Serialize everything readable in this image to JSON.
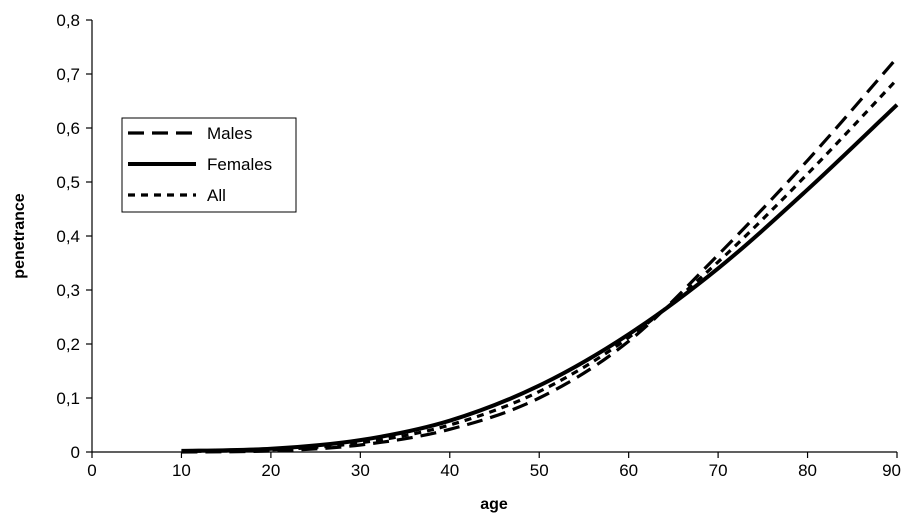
{
  "chart_data": {
    "type": "line",
    "title": "",
    "xlabel": "age",
    "ylabel": "penetrance",
    "xlim": [
      0,
      90
    ],
    "ylim": [
      0,
      0.8
    ],
    "x_ticks": [
      0,
      10,
      20,
      30,
      40,
      50,
      60,
      70,
      80,
      90
    ],
    "x_tick_labels": [
      "0",
      "10",
      "20",
      "30",
      "40",
      "50",
      "60",
      "70",
      "80",
      "90"
    ],
    "y_ticks": [
      0,
      0.1,
      0.2,
      0.3,
      0.4,
      0.5,
      0.6,
      0.7,
      0.8
    ],
    "y_tick_labels": [
      "0",
      "0,1",
      "0,2",
      "0,3",
      "0,4",
      "0,5",
      "0,6",
      "0,7",
      "0,8"
    ],
    "grid": false,
    "legend_position": "left",
    "series": [
      {
        "name": "Males",
        "line_style": "dashed",
        "color": "#000000",
        "x": [
          10,
          20,
          30,
          40,
          50,
          60,
          70,
          80,
          90
        ],
        "y": [
          0.0,
          0.002,
          0.013,
          0.042,
          0.1,
          0.205,
          0.365,
          0.54,
          0.73
        ]
      },
      {
        "name": "Females",
        "line_style": "solid",
        "color": "#000000",
        "x": [
          10,
          20,
          30,
          40,
          50,
          60,
          70,
          80,
          90
        ],
        "y": [
          0.002,
          0.006,
          0.022,
          0.058,
          0.123,
          0.218,
          0.34,
          0.486,
          0.643
        ]
      },
      {
        "name": "All",
        "line_style": "dotted",
        "color": "#000000",
        "x": [
          10,
          20,
          30,
          40,
          50,
          60,
          70,
          80,
          90
        ],
        "y": [
          0.001,
          0.004,
          0.017,
          0.05,
          0.112,
          0.212,
          0.352,
          0.515,
          0.69
        ]
      }
    ]
  }
}
